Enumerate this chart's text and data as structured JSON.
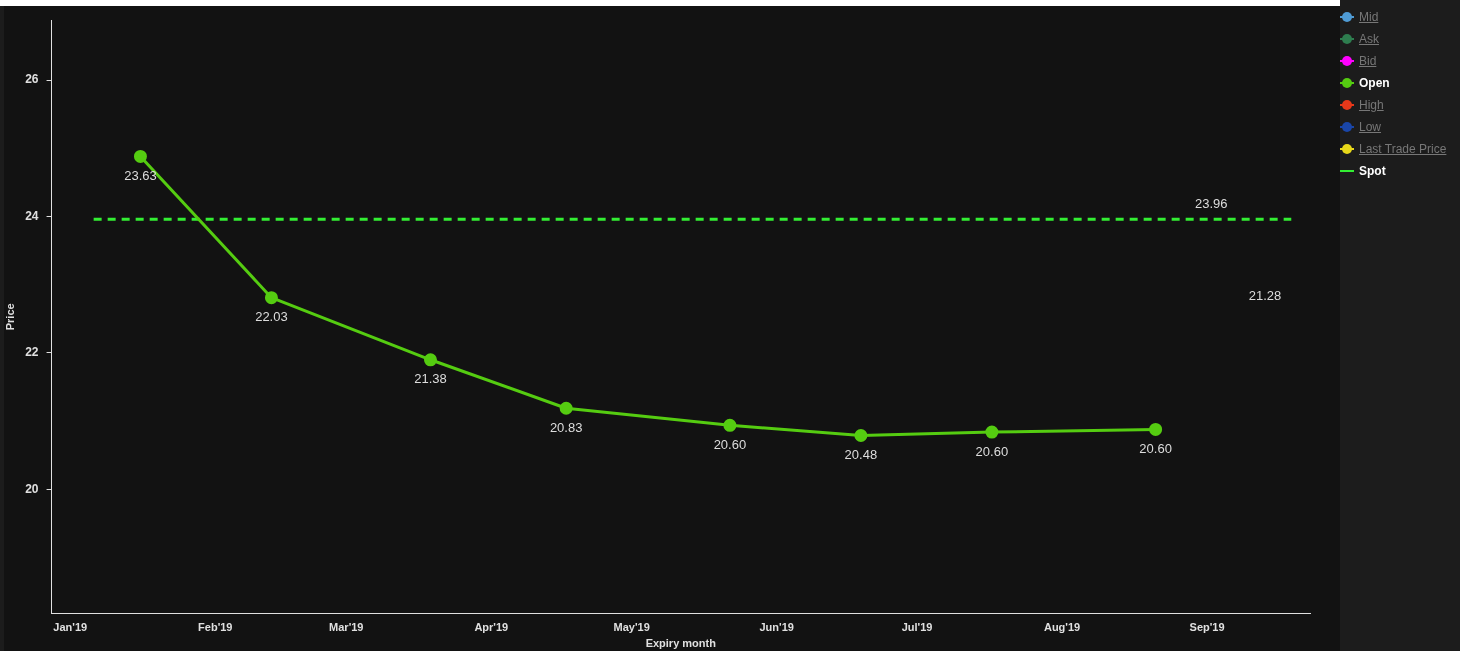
{
  "chart_data": {
    "type": "line",
    "xlabel": "Expiry month",
    "ylabel": "Price",
    "xlim": [
      "2018-12-28",
      "2019-09-23"
    ],
    "ylim": [
      18.18,
      26.88
    ],
    "xticks": [
      {
        "value": "2019-01-01",
        "label": "Jan'19"
      },
      {
        "value": "2019-02-01",
        "label": "Feb'19"
      },
      {
        "value": "2019-03-01",
        "label": "Mar'19"
      },
      {
        "value": "2019-04-01",
        "label": "Apr'19"
      },
      {
        "value": "2019-05-01",
        "label": "May'19"
      },
      {
        "value": "2019-06-01",
        "label": "Jun'19"
      },
      {
        "value": "2019-07-01",
        "label": "Jul'19"
      },
      {
        "value": "2019-08-01",
        "label": "Aug'19"
      },
      {
        "value": "2019-09-01",
        "label": "Sep'19"
      }
    ],
    "yticks": [
      20,
      22,
      24,
      26
    ],
    "x": [
      "2019-01-16",
      "2019-02-13",
      "2019-03-19",
      "2019-04-17",
      "2019-05-22",
      "2019-06-19",
      "2019-07-17",
      "2019-08-21"
    ],
    "series": [
      {
        "name": "Mid",
        "color": "#4f9bd4",
        "values": [
          null,
          null,
          null,
          null,
          null,
          null,
          null,
          null
        ]
      },
      {
        "name": "Ask",
        "color": "#2e7d4f",
        "values": [
          null,
          null,
          null,
          null,
          null,
          null,
          null,
          null
        ]
      },
      {
        "name": "Bid",
        "color": "#ff00ff",
        "values": [
          null,
          null,
          null,
          null,
          null,
          null,
          null,
          null
        ]
      },
      {
        "name": "Open",
        "color": "#55cc11",
        "marker": "circle",
        "line_style": "solid",
        "values": [
          24.88,
          22.81,
          21.9,
          21.19,
          20.94,
          20.79,
          20.84,
          20.88
        ]
      },
      {
        "name": "High",
        "color": "#e8381a",
        "values": [
          null,
          null,
          null,
          null,
          null,
          null,
          null,
          null
        ]
      },
      {
        "name": "Low",
        "color": "#1a46a8",
        "values": [
          null,
          null,
          null,
          null,
          null,
          null,
          null,
          null
        ]
      },
      {
        "name": "Last Trade Price",
        "color": "#e8d81a",
        "values": [
          null,
          null,
          null,
          null,
          null,
          null,
          null,
          null
        ]
      },
      {
        "name": "Spot",
        "color": "#33ee33",
        "marker": "none",
        "line_style": "dashed",
        "x": [
          "2019-01-06",
          "2019-09-19"
        ],
        "values": [
          23.96,
          23.96
        ]
      }
    ],
    "annotations": [
      "23.63",
      "22.03",
      "21.38",
      "20.83",
      "20.60",
      "20.48",
      "20.60",
      "20.60",
      "21.28",
      "23.96"
    ],
    "legend": "top right",
    "grid": false
  }
}
